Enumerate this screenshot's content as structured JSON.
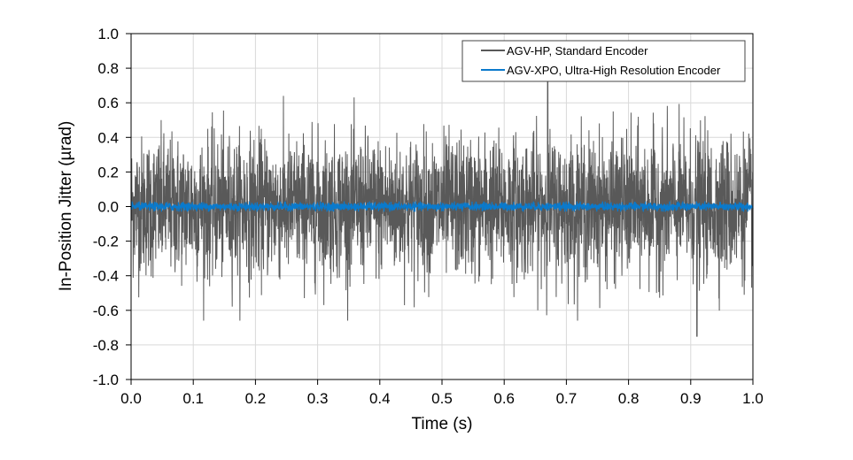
{
  "chart_data": {
    "type": "line",
    "title": "",
    "xlabel": "Time (s)",
    "ylabel": "In-Position Jitter (µrad)",
    "xlim": [
      0.0,
      1.0
    ],
    "ylim": [
      -1.0,
      1.0
    ],
    "xticks": [
      "0.0",
      "0.1",
      "0.2",
      "0.3",
      "0.4",
      "0.5",
      "0.6",
      "0.7",
      "0.8",
      "0.9",
      "1.0"
    ],
    "yticks": [
      "1.0",
      "0.8",
      "0.6",
      "0.4",
      "0.2",
      "0.0",
      "-0.2",
      "-0.4",
      "-0.6",
      "-0.8",
      "-1.0"
    ],
    "grid": true,
    "legend_placement": "top-right",
    "series": [
      {
        "name": "AGV-HP, Standard Encoder",
        "color": "#595959",
        "description_values": {
          "typical_range": [
            -0.5,
            0.5
          ],
          "max": 0.73,
          "max_at": 0.67,
          "min": -0.75,
          "min_at": 0.91
        }
      },
      {
        "name": "AGV-XPO, Ultra-High Resolution Encoder",
        "color": "#0A7ACC",
        "description_values": {
          "typical_range": [
            -0.03,
            0.03
          ]
        }
      }
    ]
  }
}
